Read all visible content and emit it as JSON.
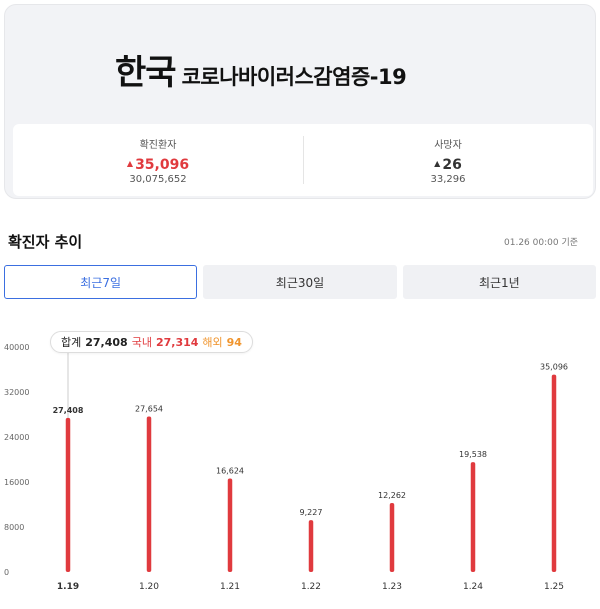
{
  "header": {
    "title_main": "한국",
    "title_sub": "코로나바이러스감염증-19"
  },
  "stats": {
    "confirmed": {
      "label": "확진환자",
      "delta": "35,096",
      "total": "30,075,652"
    },
    "deaths": {
      "label": "사망자",
      "delta": "26",
      "total": "33,296"
    }
  },
  "section": {
    "title": "확진자 추이",
    "basis": "01.26 00:00 기준"
  },
  "tabs": [
    {
      "label": "최근7일",
      "active": true
    },
    {
      "label": "최근30일",
      "active": false
    },
    {
      "label": "최근1년",
      "active": false
    }
  ],
  "tooltip": {
    "sum_label": "합계",
    "sum_value": "27,408",
    "domestic_label": "국내",
    "domestic_value": "27,314",
    "overseas_label": "해외",
    "overseas_value": "94"
  },
  "colors": {
    "bar": "#e03a3e",
    "accent": "#3b6fe0"
  },
  "chart_data": {
    "type": "bar",
    "categories": [
      "1.19",
      "1.20",
      "1.21",
      "1.22",
      "1.23",
      "1.24",
      "1.25"
    ],
    "values": [
      27408,
      27654,
      16624,
      9227,
      12262,
      19538,
      35096
    ],
    "value_labels": [
      "27,408",
      "27,654",
      "16,624",
      "9,227",
      "12,262",
      "19,538",
      "35,096"
    ],
    "y_ticks": [
      "0",
      "8000",
      "16000",
      "24000",
      "32000",
      "40000"
    ],
    "ylim": [
      0,
      40000
    ],
    "highlight_index": 0,
    "grid": false
  }
}
